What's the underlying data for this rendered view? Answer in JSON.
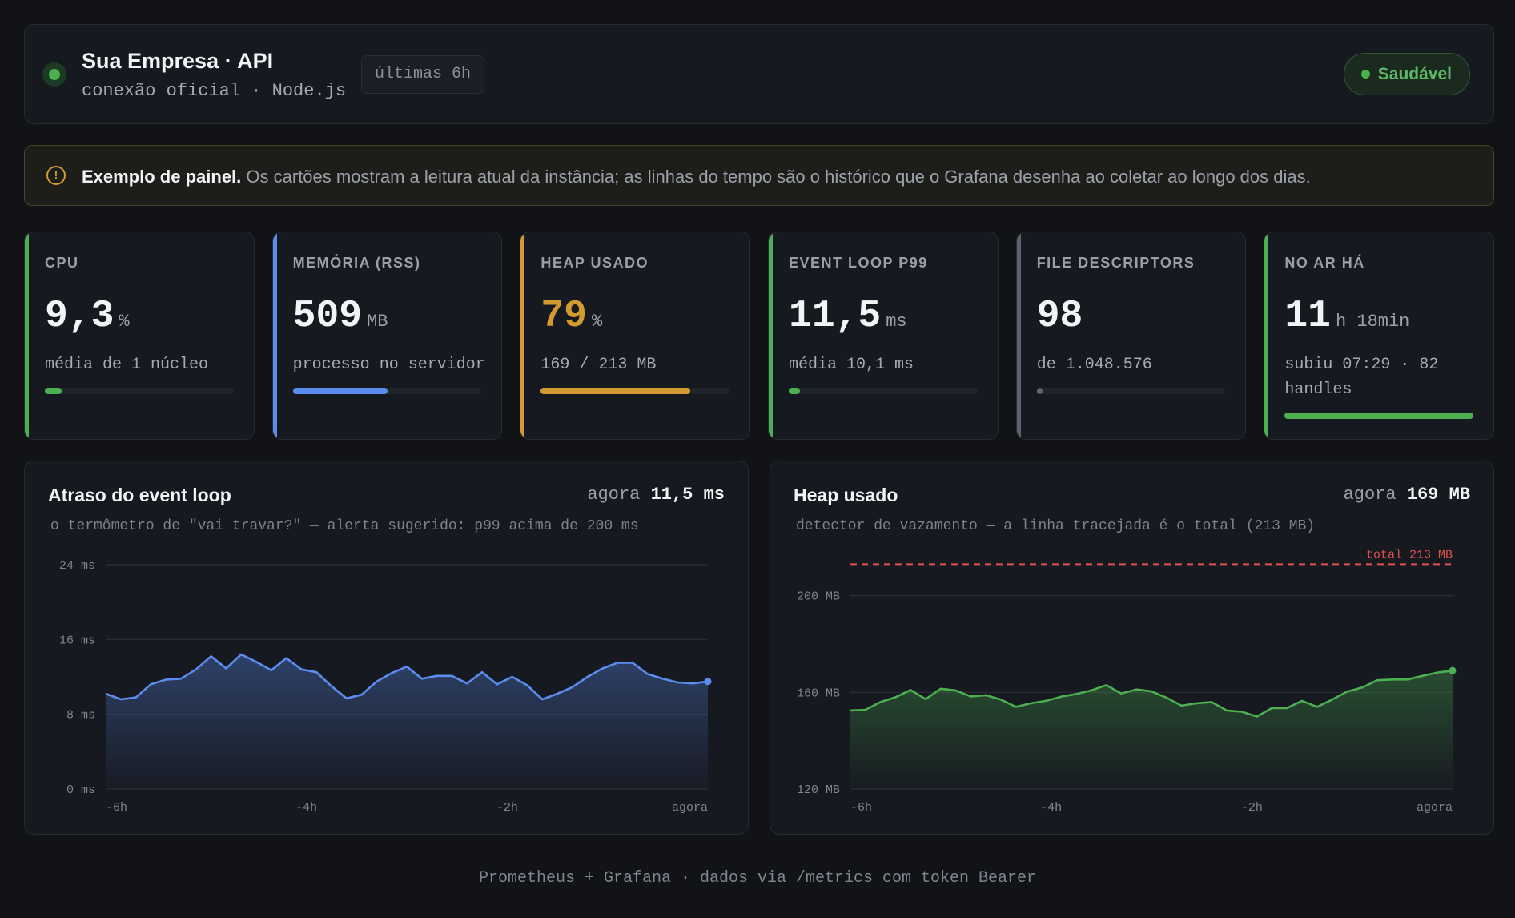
{
  "header": {
    "title": "Sua Empresa · API",
    "subtitle": "conexão oficial · Node.js",
    "range": "últimas 6h",
    "status": "Saudável",
    "status_color": "#4caf50"
  },
  "banner": {
    "icon": "alert-circle-icon",
    "bold": "Exemplo de painel.",
    "text": " Os cartões mostram a leitura atual da instância; as linhas do tempo são o histórico que o Grafana desenha ao coletar ao longo dos dias."
  },
  "stats": [
    {
      "label": "CPU",
      "value": "9,3",
      "unit": "%",
      "detail": "média de 1 núcleo",
      "progress": 0.09,
      "accent": "#4caf50",
      "value_color": "#f3f4f6"
    },
    {
      "label": "MEMÓRIA (RSS)",
      "value": "509",
      "unit": "MB",
      "detail": "processo no servidor",
      "progress": 0.5,
      "accent": "#5b8def",
      "value_color": "#f3f4f6"
    },
    {
      "label": "HEAP USADO",
      "value": "79",
      "unit": "%",
      "detail": "169 / 213 MB",
      "progress": 0.79,
      "accent": "#d39a32",
      "value_color": "#d39a32"
    },
    {
      "label": "EVENT LOOP P99",
      "value": "11,5",
      "unit": "ms",
      "detail": "média 10,1 ms",
      "progress": 0.06,
      "accent": "#4caf50",
      "value_color": "#f3f4f6"
    },
    {
      "label": "FILE DESCRIPTORS",
      "value": "98",
      "unit": "",
      "detail": "de 1.048.576",
      "progress": 0.01,
      "accent": "#5d626c",
      "value_color": "#f3f4f6"
    },
    {
      "label": "NO AR HÁ",
      "value": "11",
      "unit": "h 18min",
      "detail": "subiu 07:29 · 82 handles",
      "progress": 1.0,
      "accent": "#4caf50",
      "value_color": "#f3f4f6"
    }
  ],
  "charts": [
    {
      "title": "Atraso do event loop",
      "now_label": "agora",
      "now_value": "11,5 ms",
      "subtitle": "o termômetro de \"vai travar?\" — alerta sugerido: p99 acima de 200 ms",
      "color": "#5b8def"
    },
    {
      "title": "Heap usado",
      "now_label": "agora",
      "now_value": "169 MB",
      "subtitle": "detector de vazamento — a linha tracejada é o total (213 MB)",
      "color": "#4caf50",
      "ref_label": "total 213 MB",
      "ref_color": "#e0534e"
    }
  ],
  "chart_data": [
    {
      "type": "area",
      "title": "Atraso do event loop",
      "y_ticks": [
        "0 ms",
        "8 ms",
        "16 ms",
        "24 ms"
      ],
      "x_ticks": [
        "-6h",
        "-4h",
        "-2h",
        "agora"
      ],
      "ylim": [
        0,
        24
      ],
      "grid": true,
      "series": [
        {
          "values": [
            10.2,
            9.6,
            9.8,
            11.2,
            11.7,
            11.8,
            12.8,
            14.2,
            12.9,
            14.4,
            13.6,
            12.7,
            14.0,
            12.8,
            12.5,
            11.0,
            9.7,
            10.1,
            11.5,
            12.4,
            13.1,
            11.8,
            12.1,
            12.1,
            11.3,
            12.5,
            11.2,
            12.0,
            11.1,
            9.6,
            10.2,
            10.9,
            12.0,
            12.9,
            13.5,
            13.5,
            12.3,
            11.8,
            11.4,
            11.3,
            11.5
          ]
        }
      ]
    },
    {
      "type": "area",
      "title": "Heap usado",
      "y_ticks": [
        "120 MB",
        "160 MB",
        "200 MB"
      ],
      "x_ticks": [
        "-6h",
        "-4h",
        "-2h",
        "agora"
      ],
      "ylim": [
        120,
        214
      ],
      "reference_line": 213,
      "grid": true,
      "series": [
        {
          "values": [
            152.5,
            152.8,
            156.0,
            158.0,
            161.0,
            157.2,
            161.5,
            160.8,
            158.3,
            158.8,
            157.0,
            154.0,
            155.5,
            156.5,
            158.2,
            159.3,
            160.8,
            163.0,
            159.5,
            161.2,
            160.4,
            157.8,
            154.5,
            155.5,
            156.0,
            152.5,
            152.0,
            150.0,
            153.5,
            153.5,
            156.5,
            154.0,
            157.0,
            160.3,
            162.0,
            165.0,
            165.3,
            165.3,
            166.8,
            168.2,
            169.0
          ]
        }
      ]
    }
  ],
  "footer": "Prometheus + Grafana · dados via /metrics com token Bearer"
}
